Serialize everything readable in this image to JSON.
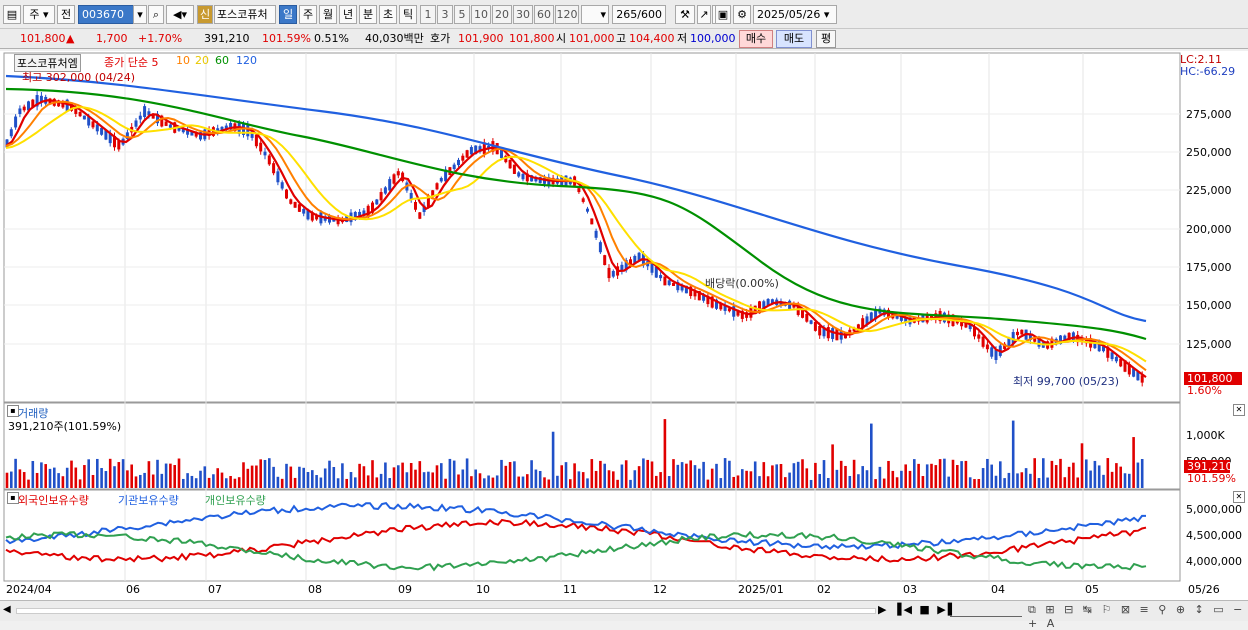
{
  "toolbar": {
    "period_main": "주",
    "prev_label": "전",
    "code": "003670",
    "stock_name": "포스코퓨처",
    "credit_badge": "신",
    "periods": [
      "일",
      "주",
      "월",
      "년",
      "분",
      "초",
      "틱"
    ],
    "nums": [
      "1",
      "3",
      "5",
      "10",
      "20",
      "30",
      "60",
      "120"
    ],
    "count": "265",
    "count_max": "/600",
    "date": "2025/05/26"
  },
  "info": {
    "price": "101,800",
    "change_arrow": "▲",
    "change": "1,700",
    "change_pct": "+1.70%",
    "volume": "391,210",
    "volume_ratio": "101.59%",
    "turnover": "0.51%",
    "amount": "40,030백만",
    "quote_label": "호가",
    "ask": "101,900",
    "bid": "101,800",
    "open_label": "시",
    "open": "101,000",
    "high_label": "고",
    "high": "104,400",
    "low_label": "저",
    "low": "100,000",
    "buy_label": "매수",
    "sell_label": "매도",
    "avg_label": "평"
  },
  "price_panel": {
    "legend_name": "포스코퓨처엠",
    "legend_items": [
      "종가 단순 5",
      "10",
      "20",
      "60",
      "120"
    ],
    "legend_colors": [
      "#e00000",
      "#e00000",
      "#ff8000",
      "#ffe000",
      "#009000",
      "#2060e0"
    ],
    "max_label": "최고 302,000 (04/24)",
    "min_label": "최저 99,700 (05/23)",
    "ex_div_label": "배당락(0.00%)",
    "lc_label": "LC:2.11",
    "hc_label": "HC:-66.29",
    "y_ticks": [
      "275,000",
      "250,000",
      "225,000",
      "200,000",
      "175,000",
      "150,000",
      "125,000"
    ],
    "last_price": "101,800",
    "last_pct": "1.60%"
  },
  "volume_panel": {
    "title": "거래량",
    "value_label": "391,210주(101.59%)",
    "y_ticks": [
      "1,000K",
      "500,000"
    ],
    "last": "391,210",
    "last_pct": "101.59%"
  },
  "holdings_panel": {
    "series": [
      "외국인보유수량",
      "기관보유수량",
      "개인보유수량"
    ],
    "colors": [
      "#e00000",
      "#2060e0",
      "#30a050"
    ],
    "y_ticks": [
      "5,000,000",
      "4,500,000",
      "4,000,000"
    ]
  },
  "x_axis": [
    "2024/04",
    "06",
    "07",
    "08",
    "09",
    "10",
    "11",
    "12",
    "2025/01",
    "02",
    "03",
    "04",
    "05",
    "05/26"
  ],
  "colors": {
    "up": "#e00000",
    "down": "#2050c8",
    "ma5": "#e00000",
    "ma10": "#ff8000",
    "ma20": "#ffe000",
    "ma60": "#009000",
    "ma120": "#2060e0"
  }
}
